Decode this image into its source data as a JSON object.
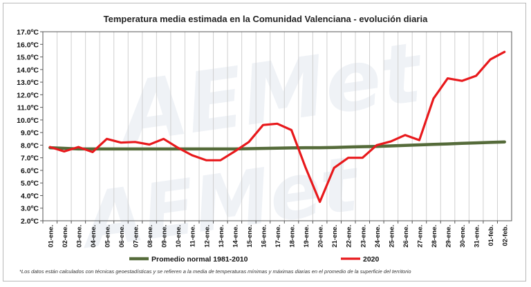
{
  "chart_data": {
    "type": "line",
    "title": "Temperatura media estimada en la Comunidad Valenciana - evolución diaria",
    "categories": [
      "01-ene.",
      "02-ene.",
      "03-ene.",
      "04-ene.",
      "05-ene.",
      "06-ene.",
      "07-ene.",
      "08-ene.",
      "09-ene.",
      "10-ene.",
      "11-ene.",
      "12-ene.",
      "13-ene.",
      "14-ene.",
      "15-ene.",
      "16-ene.",
      "17-ene.",
      "18-ene.",
      "19-ene.",
      "20-ene.",
      "21-ene.",
      "22-ene.",
      "23-ene.",
      "24-ene.",
      "25-ene.",
      "26-ene.",
      "27-ene.",
      "28-ene.",
      "29-ene.",
      "30-ene.",
      "31-ene.",
      "01-feb.",
      "02-feb."
    ],
    "y_ticks": [
      "2.0ºC",
      "3.0ºC",
      "4.0ºC",
      "5.0ºC",
      "6.0ºC",
      "7.0ºC",
      "8.0ºC",
      "9.0ºC",
      "10.0ºC",
      "11.0ºC",
      "12.0ºC",
      "13.0ºC",
      "14.0ºC",
      "15.0ºC",
      "16.0ºC",
      "17.0ºC"
    ],
    "ylim": [
      2,
      17
    ],
    "grid": "vertical",
    "legend_position": "bottom",
    "series": [
      {
        "name": "Promedio normal 1981-2010",
        "color": "#556b3a",
        "values": [
          7.8,
          7.75,
          7.7,
          7.7,
          7.7,
          7.7,
          7.7,
          7.7,
          7.7,
          7.7,
          7.7,
          7.7,
          7.7,
          7.7,
          7.72,
          7.74,
          7.76,
          7.78,
          7.8,
          7.8,
          7.82,
          7.85,
          7.88,
          7.9,
          7.94,
          7.98,
          8.02,
          8.06,
          8.1,
          8.14,
          8.18,
          8.22,
          8.26
        ]
      },
      {
        "name": "2020",
        "color": "#e8191c",
        "values": [
          7.85,
          7.5,
          7.85,
          7.45,
          8.5,
          8.2,
          8.25,
          8.05,
          8.5,
          7.8,
          7.2,
          6.8,
          6.8,
          7.5,
          8.25,
          9.6,
          9.7,
          9.2,
          6.2,
          3.5,
          6.2,
          7.0,
          7.0,
          8.0,
          8.3,
          8.8,
          8.4,
          11.7,
          13.3,
          13.1,
          13.5,
          14.8,
          15.4
        ]
      }
    ]
  },
  "footnote": "*Los datos están calculados con técnicas geoestadísticas y se refieren a la media de temperaturas mínimas y máximas diarias en el promedio de la superficie del territorio",
  "watermark": "AEMet"
}
